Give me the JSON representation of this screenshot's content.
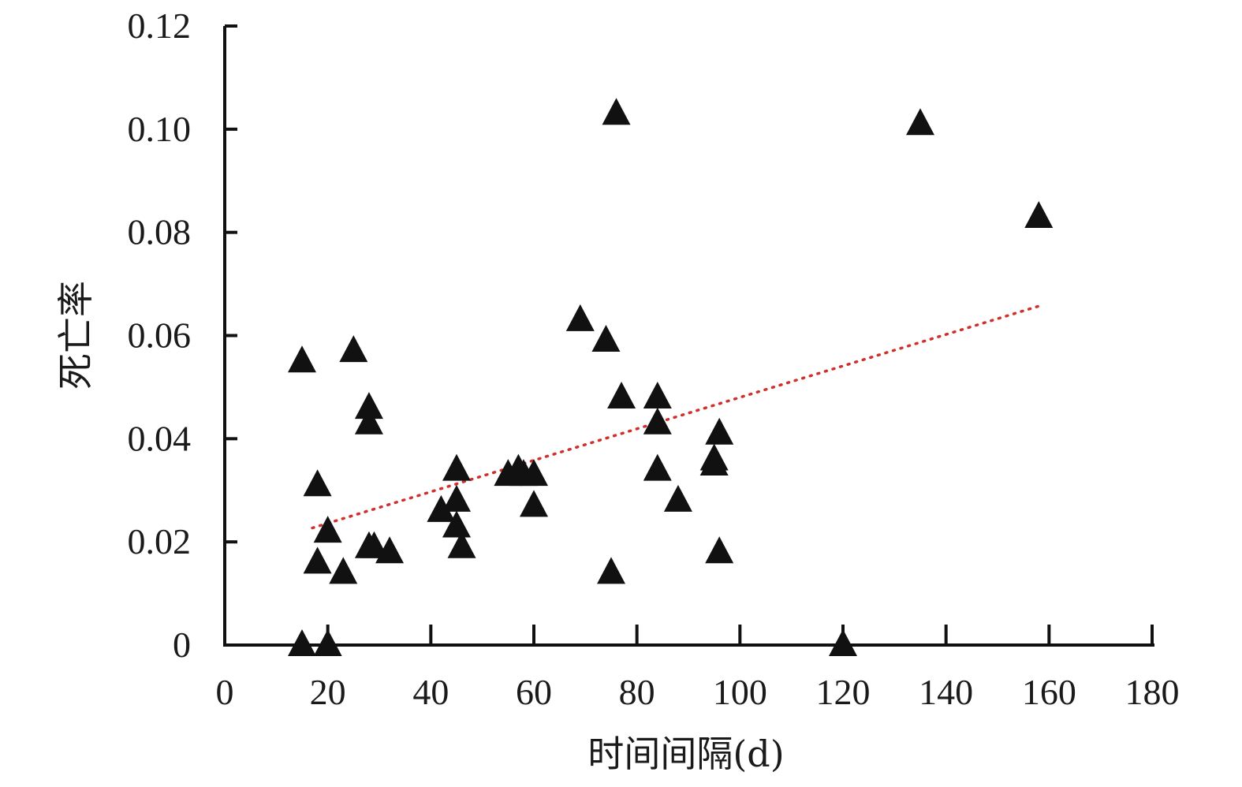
{
  "chart_data": {
    "type": "scatter",
    "title": "",
    "xlabel": "时间间隔(d)",
    "ylabel": "死亡率",
    "xlim": [
      0,
      180
    ],
    "ylim": [
      0,
      0.12
    ],
    "x_ticks": [
      "0",
      "20",
      "40",
      "60",
      "80",
      "100",
      "120",
      "140",
      "160",
      "180"
    ],
    "y_ticks": [
      "0",
      "0.02",
      "0.04",
      "0.06",
      "0.08",
      "0.10",
      "0.12"
    ],
    "grid": false,
    "legend": "none",
    "marker": "triangle",
    "marker_color": "#111111",
    "trendline": {
      "type": "linear",
      "style": "dotted",
      "color": "#d0302c",
      "x_range": [
        17,
        158
      ],
      "y_start": 0.0227,
      "y_end": 0.0657
    },
    "series": [
      {
        "points": [
          [
            15,
            0.055
          ],
          [
            15,
            0.0
          ],
          [
            18,
            0.031
          ],
          [
            18,
            0.016
          ],
          [
            20,
            0.022
          ],
          [
            20,
            0.0
          ],
          [
            23,
            0.014
          ],
          [
            25,
            0.057
          ],
          [
            28,
            0.046
          ],
          [
            28,
            0.043
          ],
          [
            28,
            0.019
          ],
          [
            29,
            0.019
          ],
          [
            32,
            0.018
          ],
          [
            42,
            0.026
          ],
          [
            45,
            0.034
          ],
          [
            45,
            0.028
          ],
          [
            45,
            0.023
          ],
          [
            46,
            0.019
          ],
          [
            55,
            0.033
          ],
          [
            57,
            0.034
          ],
          [
            58,
            0.033
          ],
          [
            60,
            0.033
          ],
          [
            60,
            0.027
          ],
          [
            69,
            0.063
          ],
          [
            74,
            0.059
          ],
          [
            75,
            0.014
          ],
          [
            76,
            0.103
          ],
          [
            77,
            0.048
          ],
          [
            84,
            0.048
          ],
          [
            84,
            0.043
          ],
          [
            84,
            0.034
          ],
          [
            88,
            0.028
          ],
          [
            95,
            0.036
          ],
          [
            95,
            0.035
          ],
          [
            96,
            0.041
          ],
          [
            96,
            0.018
          ],
          [
            120,
            0.0
          ],
          [
            135,
            0.101
          ],
          [
            158,
            0.083
          ]
        ]
      }
    ]
  }
}
